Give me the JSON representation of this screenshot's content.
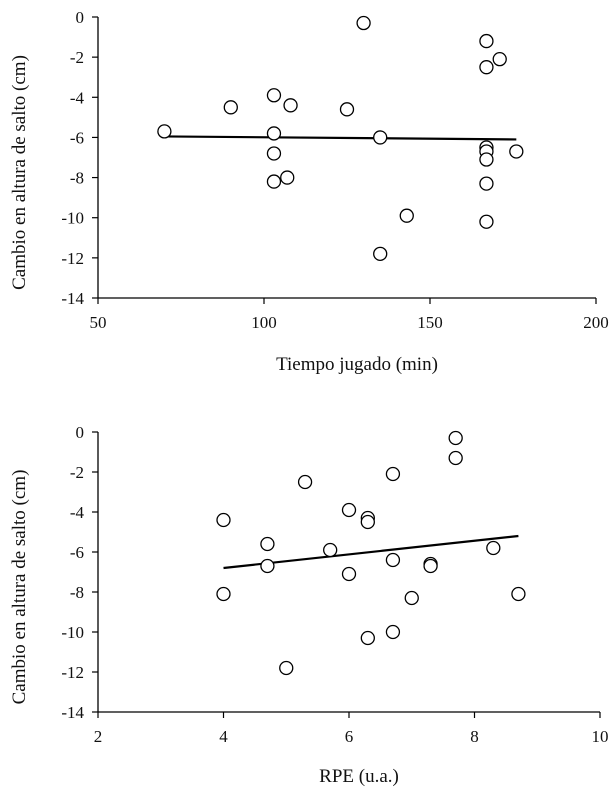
{
  "chart_data": [
    {
      "type": "scatter",
      "title": "",
      "xlabel": "Tiempo jugado (min)",
      "ylabel": "Cambio en altura de salto (cm)",
      "xlim": [
        50,
        200
      ],
      "ylim": [
        -14,
        0
      ],
      "xticks": [
        50,
        100,
        150,
        200
      ],
      "yticks": [
        0,
        -2,
        -4,
        -6,
        -8,
        -10,
        -12,
        -14
      ],
      "grid": false,
      "legend": "none",
      "marker": "open-circle",
      "trendline": {
        "x": [
          70,
          176
        ],
        "y": [
          -5.95,
          -6.1
        ]
      },
      "points": [
        {
          "x": 70,
          "y": -5.7
        },
        {
          "x": 90,
          "y": -4.5
        },
        {
          "x": 103,
          "y": -3.9
        },
        {
          "x": 103,
          "y": -5.8
        },
        {
          "x": 103,
          "y": -6.8
        },
        {
          "x": 103,
          "y": -8.2
        },
        {
          "x": 107,
          "y": -8.0
        },
        {
          "x": 108,
          "y": -4.4
        },
        {
          "x": 125,
          "y": -4.6
        },
        {
          "x": 130,
          "y": -0.3
        },
        {
          "x": 135,
          "y": -6.0
        },
        {
          "x": 135,
          "y": -11.8
        },
        {
          "x": 143,
          "y": -9.9
        },
        {
          "x": 167,
          "y": -1.2
        },
        {
          "x": 167,
          "y": -2.5
        },
        {
          "x": 167,
          "y": -6.5
        },
        {
          "x": 167,
          "y": -6.7
        },
        {
          "x": 167,
          "y": -7.1
        },
        {
          "x": 167,
          "y": -8.3
        },
        {
          "x": 167,
          "y": -10.2
        },
        {
          "x": 171,
          "y": -2.1
        },
        {
          "x": 176,
          "y": -6.7
        }
      ]
    },
    {
      "type": "scatter",
      "title": "",
      "xlabel": "RPE (u.a.)",
      "ylabel": "Cambio en altura de salto (cm)",
      "xlim": [
        2,
        10
      ],
      "ylim": [
        -14,
        0
      ],
      "xticks": [
        2,
        4,
        6,
        8,
        10
      ],
      "yticks": [
        0,
        -2,
        -4,
        -6,
        -8,
        -10,
        -12,
        -14
      ],
      "grid": false,
      "legend": "none",
      "marker": "open-circle",
      "trendline": {
        "x": [
          4,
          8.7
        ],
        "y": [
          -6.8,
          -5.2
        ]
      },
      "points": [
        {
          "x": 4.0,
          "y": -4.4
        },
        {
          "x": 4.0,
          "y": -8.1
        },
        {
          "x": 4.7,
          "y": -5.6
        },
        {
          "x": 4.7,
          "y": -6.7
        },
        {
          "x": 5.0,
          "y": -11.8
        },
        {
          "x": 5.3,
          "y": -2.5
        },
        {
          "x": 5.7,
          "y": -5.9
        },
        {
          "x": 6.0,
          "y": -3.9
        },
        {
          "x": 6.0,
          "y": -7.1
        },
        {
          "x": 6.3,
          "y": -4.3
        },
        {
          "x": 6.3,
          "y": -4.5
        },
        {
          "x": 6.3,
          "y": -10.3
        },
        {
          "x": 6.7,
          "y": -2.1
        },
        {
          "x": 6.7,
          "y": -6.4
        },
        {
          "x": 6.7,
          "y": -10.0
        },
        {
          "x": 7.0,
          "y": -8.3
        },
        {
          "x": 7.3,
          "y": -6.6
        },
        {
          "x": 7.3,
          "y": -6.7
        },
        {
          "x": 7.7,
          "y": -0.3
        },
        {
          "x": 7.7,
          "y": -1.3
        },
        {
          "x": 8.3,
          "y": -5.8
        },
        {
          "x": 8.7,
          "y": -8.1
        }
      ]
    }
  ]
}
